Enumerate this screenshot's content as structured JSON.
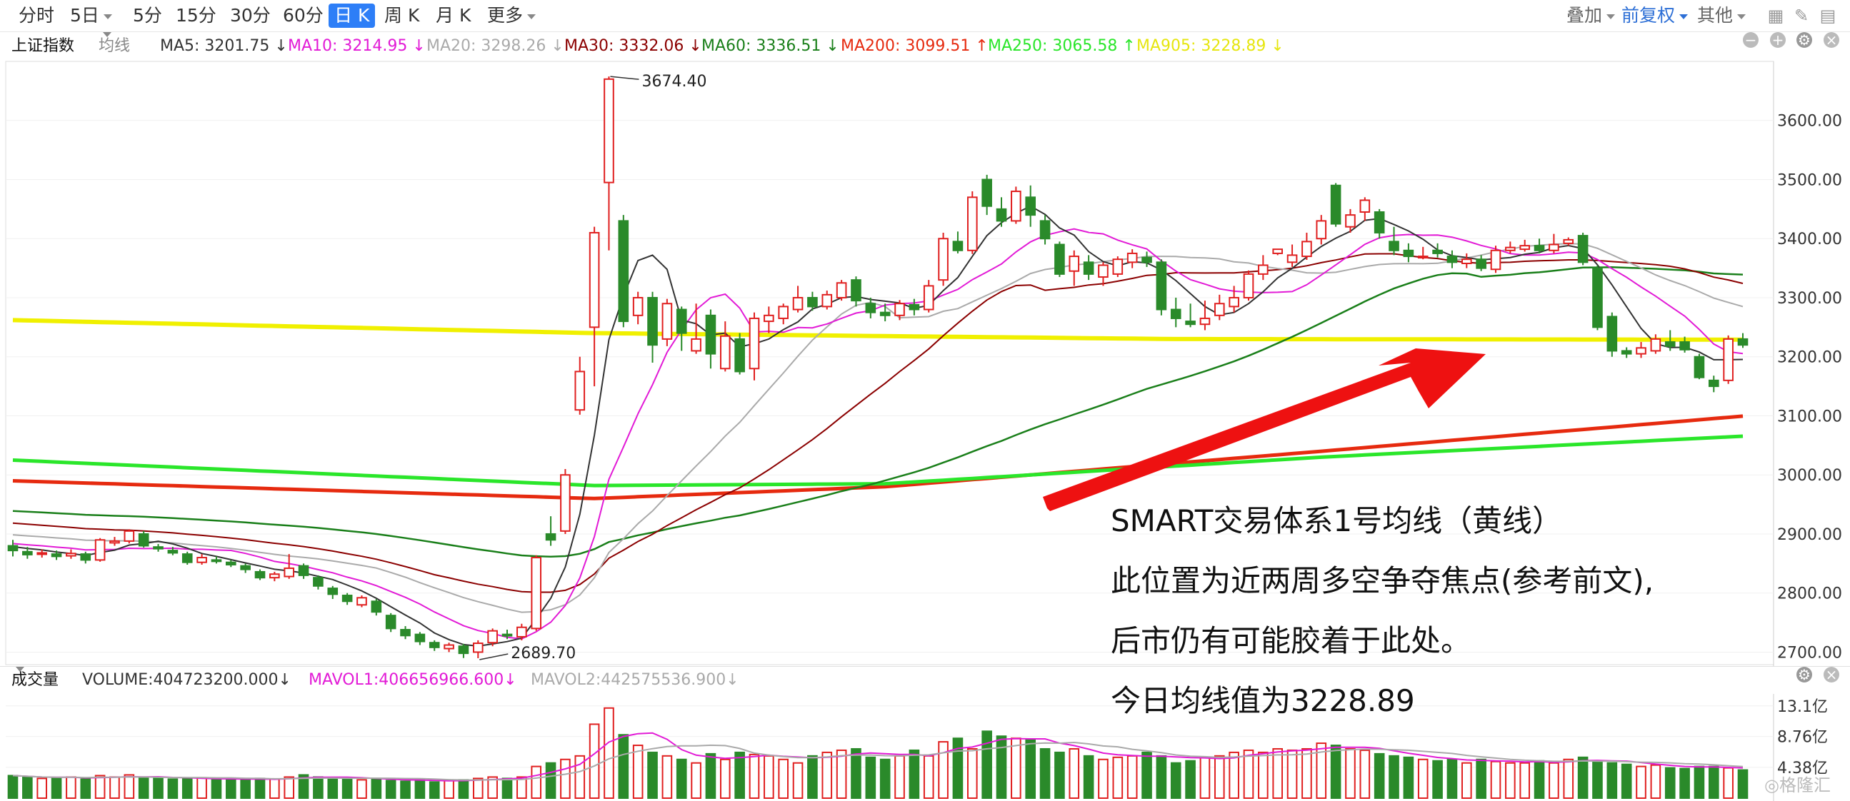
{
  "toolbar": {
    "items": [
      "分时",
      "5日",
      "5分",
      "15分",
      "30分",
      "60分",
      "日 K",
      "周 K",
      "月 K",
      "更多"
    ],
    "active": "日 K",
    "right": {
      "overlay": "叠加",
      "adjust": "前复权",
      "other": "其他"
    }
  },
  "main_header": {
    "index_name": "上证指数",
    "mode": "均线",
    "ma": [
      {
        "label": "MA5: 3201.75 ↓",
        "color": "#333333"
      },
      {
        "label": "MA10: 3214.95 ↓",
        "color": "#e21bd6"
      },
      {
        "label": "MA20: 3298.26 ↓",
        "color": "#aaaaaa"
      },
      {
        "label": "MA30: 3332.06 ↓",
        "color": "#8b0000"
      },
      {
        "label": "MA60: 3336.51 ↓",
        "color": "#1a7f1a"
      },
      {
        "label": "MA200: 3099.51 ↑",
        "color": "#e62a0f"
      },
      {
        "label": "MA250: 3065.58 ↑",
        "color": "#2ae62a"
      },
      {
        "label": "MA905: 3228.89 ↓",
        "color": "#e6e60f"
      }
    ]
  },
  "volume_header": {
    "title": "成交量",
    "volume": "VOLUME:404723200.000↓",
    "mavol1": "MAVOL1:406656966.600↓",
    "mavol2": "MAVOL2:442575536.900↓"
  },
  "annotation": {
    "line1": "SMART交易体系1号均线（黄线）",
    "line2": "此位置为近两周多空争夺焦点(参考前文),",
    "line3": "后市仍有可能胶着于此处。",
    "line4": "今日均线值为3228.89"
  },
  "watermark": "格隆汇",
  "chart_data": {
    "type": "candlestick",
    "ylim": [
      2680,
      3700
    ],
    "y_ticks": [
      "3600.00",
      "3500.00",
      "3400.00",
      "3300.00",
      "3200.00",
      "3100.00",
      "3000.00",
      "2900.00",
      "2800.00",
      "2700.00"
    ],
    "y_tick_values": [
      3600,
      3500,
      3400,
      3300,
      3200,
      3100,
      3000,
      2900,
      2800,
      2700
    ],
    "high_label": "3674.40",
    "low_label": "2689.70",
    "volume_ticks": [
      "13.1亿",
      "8.76亿",
      "4.38亿"
    ],
    "volume_tick_values": [
      13.1,
      8.76,
      4.38
    ],
    "volume_ylim": [
      0,
      14.5
    ],
    "candles": [
      [
        2880,
        2872,
        2890,
        2862
      ],
      [
        2870,
        2865,
        2878,
        2858
      ],
      [
        2866,
        2868,
        2874,
        2860
      ],
      [
        2866,
        2862,
        2872,
        2856
      ],
      [
        2863,
        2867,
        2874,
        2858
      ],
      [
        2866,
        2856,
        2870,
        2850
      ],
      [
        2856,
        2890,
        2893,
        2853
      ],
      [
        2885,
        2888,
        2895,
        2880
      ],
      [
        2888,
        2905,
        2908,
        2884
      ],
      [
        2900,
        2880,
        2905,
        2877
      ],
      [
        2878,
        2875,
        2883,
        2870
      ],
      [
        2872,
        2868,
        2878,
        2864
      ],
      [
        2866,
        2852,
        2870,
        2848
      ],
      [
        2852,
        2860,
        2866,
        2848
      ],
      [
        2856,
        2855,
        2862,
        2850
      ],
      [
        2852,
        2848,
        2856,
        2844
      ],
      [
        2846,
        2840,
        2850,
        2834
      ],
      [
        2836,
        2826,
        2840,
        2822
      ],
      [
        2826,
        2832,
        2836,
        2820
      ],
      [
        2828,
        2842,
        2866,
        2824
      ],
      [
        2846,
        2830,
        2850,
        2824
      ],
      [
        2826,
        2812,
        2830,
        2806
      ],
      [
        2808,
        2798,
        2812,
        2790
      ],
      [
        2796,
        2786,
        2800,
        2780
      ],
      [
        2780,
        2792,
        2796,
        2776
      ],
      [
        2786,
        2768,
        2790,
        2762
      ],
      [
        2762,
        2740,
        2766,
        2734
      ],
      [
        2738,
        2728,
        2744,
        2722
      ],
      [
        2730,
        2718,
        2734,
        2712
      ],
      [
        2716,
        2708,
        2720,
        2702
      ],
      [
        2706,
        2712,
        2716,
        2700
      ],
      [
        2710,
        2698,
        2714,
        2690
      ],
      [
        2700,
        2715,
        2720,
        2689.7
      ],
      [
        2716,
        2736,
        2740,
        2710
      ],
      [
        2730,
        2728,
        2738,
        2722
      ],
      [
        2726,
        2742,
        2748,
        2720
      ],
      [
        2740,
        2860,
        2864,
        2736
      ],
      [
        2900,
        2890,
        2930,
        2880
      ],
      [
        2905,
        3000,
        3010,
        2900
      ],
      [
        3110,
        3175,
        3200,
        3102
      ],
      [
        3250,
        3410,
        3420,
        3150
      ],
      [
        3495,
        3670,
        3674.4,
        3380
      ],
      [
        3430,
        3260,
        3440,
        3250
      ],
      [
        3270,
        3300,
        3310,
        3255
      ],
      [
        3300,
        3220,
        3310,
        3190
      ],
      [
        3230,
        3290,
        3298,
        3218
      ],
      [
        3280,
        3240,
        3285,
        3210
      ],
      [
        3210,
        3230,
        3290,
        3205
      ],
      [
        3270,
        3205,
        3280,
        3180
      ],
      [
        3180,
        3235,
        3260,
        3175
      ],
      [
        3230,
        3175,
        3240,
        3170
      ],
      [
        3180,
        3265,
        3275,
        3160
      ],
      [
        3260,
        3270,
        3285,
        3240
      ],
      [
        3265,
        3285,
        3290,
        3255
      ],
      [
        3280,
        3300,
        3320,
        3275
      ],
      [
        3300,
        3285,
        3310,
        3278
      ],
      [
        3285,
        3305,
        3312,
        3280
      ],
      [
        3300,
        3325,
        3330,
        3295
      ],
      [
        3330,
        3295,
        3336,
        3285
      ],
      [
        3290,
        3275,
        3300,
        3265
      ],
      [
        3275,
        3270,
        3290,
        3260
      ],
      [
        3270,
        3290,
        3296,
        3262
      ],
      [
        3288,
        3280,
        3298,
        3270
      ],
      [
        3280,
        3320,
        3330,
        3275
      ],
      [
        3330,
        3400,
        3410,
        3320
      ],
      [
        3395,
        3380,
        3412,
        3375
      ],
      [
        3380,
        3470,
        3480,
        3374
      ],
      [
        3500,
        3455,
        3508,
        3440
      ],
      [
        3450,
        3430,
        3470,
        3420
      ],
      [
        3430,
        3480,
        3488,
        3425
      ],
      [
        3470,
        3440,
        3490,
        3420
      ],
      [
        3430,
        3400,
        3440,
        3390
      ],
      [
        3390,
        3340,
        3395,
        3335
      ],
      [
        3345,
        3370,
        3380,
        3320
      ],
      [
        3360,
        3340,
        3372,
        3330
      ],
      [
        3335,
        3355,
        3360,
        3320
      ],
      [
        3340,
        3365,
        3370,
        3335
      ],
      [
        3360,
        3375,
        3382,
        3350
      ],
      [
        3368,
        3360,
        3378,
        3352
      ],
      [
        3360,
        3280,
        3365,
        3270
      ],
      [
        3280,
        3265,
        3300,
        3250
      ],
      [
        3260,
        3255,
        3290,
        3250
      ],
      [
        3255,
        3265,
        3295,
        3245
      ],
      [
        3270,
        3290,
        3305,
        3262
      ],
      [
        3285,
        3300,
        3320,
        3275
      ],
      [
        3300,
        3340,
        3346,
        3295
      ],
      [
        3340,
        3355,
        3372,
        3330
      ],
      [
        3375,
        3382,
        3380,
        3372
      ],
      [
        3360,
        3372,
        3390,
        3352
      ],
      [
        3370,
        3395,
        3410,
        3364
      ],
      [
        3400,
        3430,
        3440,
        3390
      ],
      [
        3490,
        3425,
        3494,
        3420
      ],
      [
        3420,
        3440,
        3450,
        3410
      ],
      [
        3445,
        3465,
        3470,
        3430
      ],
      [
        3445,
        3410,
        3450,
        3400
      ],
      [
        3395,
        3380,
        3420,
        3372
      ],
      [
        3380,
        3370,
        3392,
        3360
      ],
      [
        3370,
        3370,
        3386,
        3365
      ],
      [
        3380,
        3375,
        3392,
        3368
      ],
      [
        3370,
        3360,
        3380,
        3350
      ],
      [
        3358,
        3365,
        3375,
        3350
      ],
      [
        3365,
        3350,
        3372,
        3345
      ],
      [
        3348,
        3380,
        3388,
        3342
      ],
      [
        3380,
        3385,
        3395,
        3375
      ],
      [
        3382,
        3388,
        3398,
        3378
      ],
      [
        3388,
        3380,
        3400,
        3375
      ],
      [
        3380,
        3390,
        3408,
        3375
      ],
      [
        3392,
        3398,
        3402,
        3388
      ],
      [
        3405,
        3360,
        3410,
        3355
      ],
      [
        3350,
        3250,
        3355,
        3245
      ],
      [
        3268,
        3210,
        3275,
        3200
      ],
      [
        3210,
        3205,
        3216,
        3198
      ],
      [
        3205,
        3215,
        3225,
        3198
      ],
      [
        3210,
        3230,
        3238,
        3205
      ],
      [
        3225,
        3218,
        3245,
        3210
      ],
      [
        3225,
        3212,
        3234,
        3207
      ],
      [
        3200,
        3165,
        3205,
        3162
      ],
      [
        3160,
        3150,
        3168,
        3140
      ],
      [
        3160,
        3230,
        3236,
        3154
      ],
      [
        3230,
        3220,
        3240,
        3215
      ]
    ],
    "volumes": [
      3.2,
      3.0,
      2.8,
      2.9,
      3.0,
      2.7,
      3.2,
      3.0,
      3.3,
      2.9,
      2.8,
      2.7,
      2.8,
      2.9,
      2.6,
      2.7,
      2.6,
      2.8,
      2.7,
      3.0,
      3.3,
      3.0,
      2.9,
      2.7,
      2.6,
      2.8,
      2.5,
      2.4,
      2.6,
      2.3,
      2.5,
      2.6,
      2.8,
      3.0,
      2.8,
      3.0,
      4.5,
      5.0,
      5.5,
      6.0,
      10.5,
      12.8,
      9.0,
      7.5,
      6.5,
      6.0,
      5.5,
      5.0,
      6.3,
      5.5,
      6.5,
      6.2,
      6.0,
      5.5,
      5.0,
      6.0,
      6.5,
      6.8,
      7.0,
      5.8,
      5.5,
      6.0,
      6.8,
      6.0,
      8.0,
      8.5,
      7.0,
      9.5,
      8.8,
      8.5,
      8.3,
      7.0,
      6.5,
      7.0,
      6.0,
      5.5,
      5.8,
      6.0,
      6.5,
      6.0,
      5.0,
      5.3,
      5.8,
      6.0,
      6.5,
      6.8,
      6.5,
      7.0,
      6.8,
      7.0,
      7.8,
      7.5,
      7.0,
      6.8,
      6.3,
      6.0,
      5.8,
      5.5,
      5.3,
      5.5,
      5.0,
      5.5,
      5.2,
      5.0,
      5.0,
      5.3,
      5.0,
      5.5,
      5.8,
      5.2,
      5.0,
      4.8,
      4.5,
      4.7,
      4.3,
      4.2,
      4.5,
      4.5,
      4.3,
      4.0
    ]
  }
}
